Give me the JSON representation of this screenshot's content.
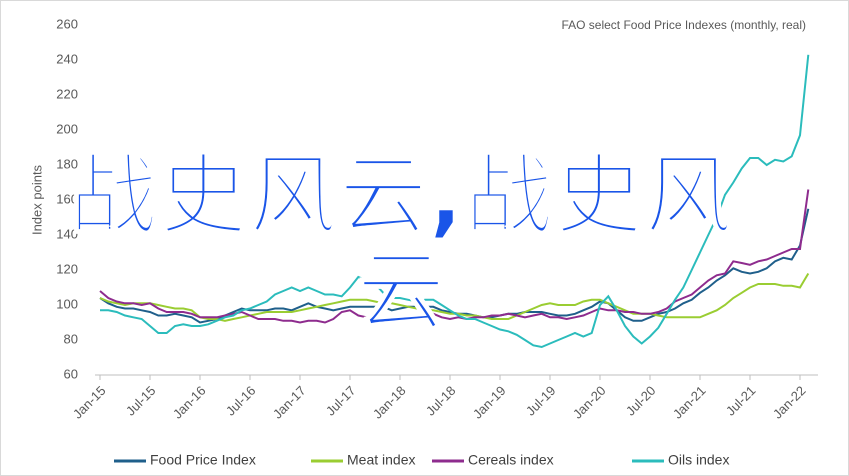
{
  "chart_data": {
    "type": "line",
    "title": "FAO select Food Price Indexes (monthly, real)",
    "y_label": "Index points",
    "overlay_text": "战史风云,战史风云",
    "categories": [
      "Jan-15",
      null,
      null,
      null,
      null,
      null,
      "Jul-15",
      null,
      null,
      null,
      null,
      null,
      "Jan-16",
      null,
      null,
      null,
      null,
      null,
      "Jul-16",
      null,
      null,
      null,
      null,
      null,
      "Jan-17",
      null,
      null,
      null,
      null,
      null,
      "Jul-17",
      null,
      null,
      null,
      null,
      null,
      "Jan-18",
      null,
      null,
      null,
      null,
      null,
      "Jul-18",
      null,
      null,
      null,
      null,
      null,
      "Jan-19",
      null,
      null,
      null,
      null,
      null,
      "Jul-19",
      null,
      null,
      null,
      null,
      null,
      "Jan-20",
      null,
      null,
      null,
      null,
      null,
      "Jul-20",
      null,
      null,
      null,
      null,
      null,
      "Jan-21",
      null,
      null,
      null,
      null,
      null,
      "Jul-21",
      null,
      null,
      null,
      null,
      null,
      "Jan-22",
      null
    ],
    "ylim": [
      60,
      260
    ],
    "yticks": [
      60,
      80,
      100,
      120,
      140,
      160,
      180,
      200,
      220,
      240,
      260
    ],
    "grid": false,
    "legend": "bottom",
    "series": [
      {
        "name": "Food Price Index",
        "color": "#1f5f8b",
        "values": [
          104,
          101,
          99,
          98,
          98,
          97,
          96,
          94,
          94,
          95,
          94,
          93,
          90,
          91,
          92,
          94,
          96,
          98,
          97,
          97,
          97,
          98,
          98,
          97,
          99,
          101,
          99,
          98,
          97,
          98,
          99,
          99,
          99,
          99,
          99,
          97,
          98,
          99,
          99,
          99,
          99,
          97,
          96,
          95,
          95,
          94,
          93,
          93,
          94,
          95,
          95,
          96,
          96,
          96,
          95,
          94,
          94,
          95,
          97,
          99,
          102,
          101,
          97,
          93,
          91,
          91,
          93,
          95,
          96,
          98,
          101,
          103,
          107,
          110,
          114,
          117,
          121,
          119,
          118,
          119,
          121,
          125,
          127,
          126,
          134,
          155
        ]
      },
      {
        "name": "Meat index",
        "color": "#9acd32",
        "values": [
          104,
          102,
          101,
          100,
          101,
          101,
          101,
          100,
          99,
          98,
          98,
          97,
          93,
          92,
          92,
          91,
          92,
          93,
          94,
          95,
          96,
          96,
          96,
          96,
          97,
          98,
          99,
          100,
          101,
          102,
          103,
          103,
          103,
          102,
          101,
          101,
          100,
          99,
          98,
          97,
          97,
          96,
          95,
          95,
          94,
          94,
          93,
          92,
          92,
          92,
          94,
          96,
          98,
          100,
          101,
          100,
          100,
          100,
          102,
          103,
          103,
          101,
          99,
          97,
          95,
          95,
          95,
          94,
          93,
          93,
          93,
          93,
          93,
          95,
          97,
          100,
          104,
          107,
          110,
          112,
          112,
          112,
          111,
          111,
          110,
          118
        ]
      },
      {
        "name": "Cereals index",
        "color": "#8e2c8e",
        "values": [
          108,
          104,
          102,
          101,
          101,
          100,
          101,
          98,
          96,
          96,
          96,
          95,
          93,
          93,
          93,
          94,
          95,
          96,
          94,
          92,
          92,
          92,
          91,
          91,
          90,
          91,
          91,
          90,
          92,
          96,
          97,
          94,
          93,
          92,
          92,
          91,
          92,
          93,
          94,
          95,
          95,
          93,
          92,
          93,
          92,
          93,
          93,
          94,
          94,
          95,
          94,
          93,
          94,
          95,
          93,
          93,
          92,
          93,
          94,
          96,
          98,
          97,
          97,
          96,
          96,
          95,
          95,
          96,
          98,
          102,
          104,
          106,
          110,
          114,
          117,
          118,
          125,
          124,
          123,
          125,
          126,
          128,
          130,
          132,
          132,
          166
        ]
      },
      {
        "name": "Oils index",
        "color": "#2bbcbc",
        "values": [
          97,
          97,
          96,
          94,
          93,
          92,
          88,
          84,
          84,
          88,
          89,
          88,
          88,
          89,
          91,
          93,
          94,
          97,
          98,
          100,
          102,
          106,
          108,
          110,
          108,
          110,
          108,
          106,
          106,
          105,
          110,
          116,
          114,
          112,
          107,
          104,
          104,
          103,
          102,
          103,
          103,
          100,
          97,
          94,
          92,
          92,
          90,
          88,
          86,
          85,
          83,
          80,
          77,
          76,
          78,
          80,
          82,
          84,
          82,
          84,
          100,
          105,
          97,
          88,
          82,
          78,
          82,
          87,
          95,
          103,
          110,
          120,
          130,
          140,
          150,
          163,
          170,
          178,
          184,
          184,
          180,
          183,
          182,
          185,
          197,
          243
        ]
      }
    ]
  }
}
